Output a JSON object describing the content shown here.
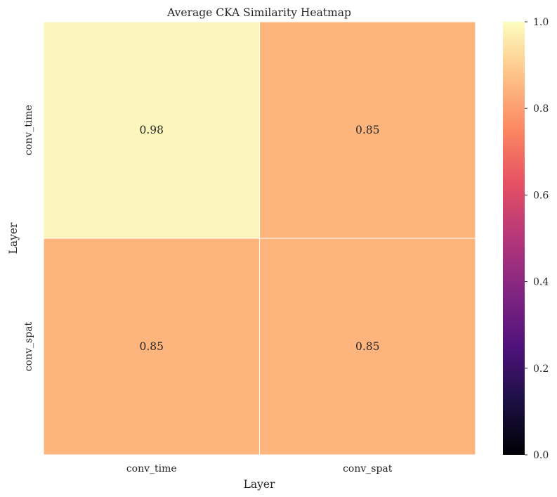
{
  "chart_data": {
    "type": "heatmap",
    "title": "Average CKA Similarity Heatmap",
    "xlabel": "Layer",
    "ylabel": "Layer",
    "x_categories": [
      "conv_time",
      "conv_spat"
    ],
    "y_categories": [
      "conv_time",
      "conv_spat"
    ],
    "values": [
      [
        0.98,
        0.85
      ],
      [
        0.85,
        0.85
      ]
    ],
    "value_labels": [
      [
        "0.98",
        "0.85"
      ],
      [
        "0.85",
        "0.85"
      ]
    ],
    "colormap": "magma",
    "cell_colors": [
      [
        "#fbf5bb",
        "#feb47d"
      ],
      [
        "#feb47d",
        "#feb47d"
      ]
    ],
    "grid_line_color": "#ffffff",
    "colorbar": {
      "range": [
        0.0,
        1.0
      ],
      "ticks": [
        0.0,
        0.2,
        0.4,
        0.6,
        0.8,
        1.0
      ],
      "tick_labels": [
        "0.0",
        "0.2",
        "0.4",
        "0.6",
        "0.8",
        "1.0"
      ],
      "gradient_stops": [
        "#000004",
        "#1c1044",
        "#4f127b",
        "#812581",
        "#b5367a",
        "#e55064",
        "#fb8761",
        "#fec287",
        "#fcfdbf"
      ]
    }
  }
}
